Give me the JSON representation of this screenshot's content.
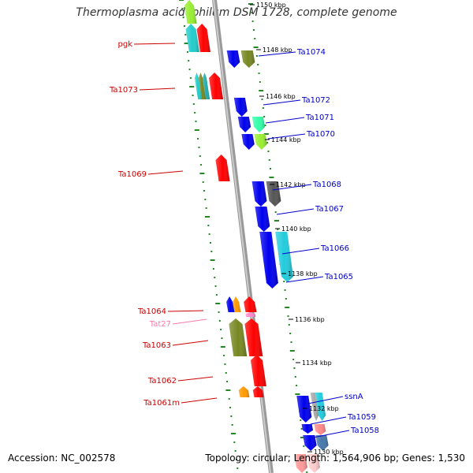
{
  "title": "Thermoplasma acidophilum DSM 1728, complete genome",
  "accession": "Accession: NC_002578",
  "stats": "Topology: circular; Length: 1,564,906 bp; Genes: 1,530",
  "colors": {
    "reverse_label": "#cc0000",
    "forward_label": "#0000cc",
    "trna_label": "#ff77aa",
    "backbone": "#888888",
    "ticks": "#228822"
  },
  "ticks": [
    {
      "label": "1150 kbp"
    },
    {
      "label": "1148 kbp"
    },
    {
      "label": "1146 kbp"
    },
    {
      "label": "1144 kbp"
    },
    {
      "label": "1142 kbp"
    },
    {
      "label": "1140 kbp"
    },
    {
      "label": "1138 kbp"
    },
    {
      "label": "1136 kbp"
    },
    {
      "label": "1134 kbp"
    },
    {
      "label": "1132 kbp"
    },
    {
      "label": "1130 kbp"
    }
  ],
  "forward_genes": [
    {
      "label": "Ta1074"
    },
    {
      "label": "Ta1072"
    },
    {
      "label": "Ta1071"
    },
    {
      "label": "Ta1070"
    },
    {
      "label": "Ta1068"
    },
    {
      "label": "Ta1067"
    },
    {
      "label": "Ta1066"
    },
    {
      "label": "Ta1065"
    },
    {
      "label": "ssnA"
    },
    {
      "label": "Ta1059"
    },
    {
      "label": "Ta1058"
    }
  ],
  "reverse_genes": [
    {
      "label": "pgk"
    },
    {
      "label": "Ta1073"
    },
    {
      "label": "Ta1069"
    },
    {
      "label": "Ta1064"
    },
    {
      "label": "Tat27"
    },
    {
      "label": "Ta1063"
    },
    {
      "label": "Ta1062"
    },
    {
      "label": "Ta1061m"
    }
  ]
}
